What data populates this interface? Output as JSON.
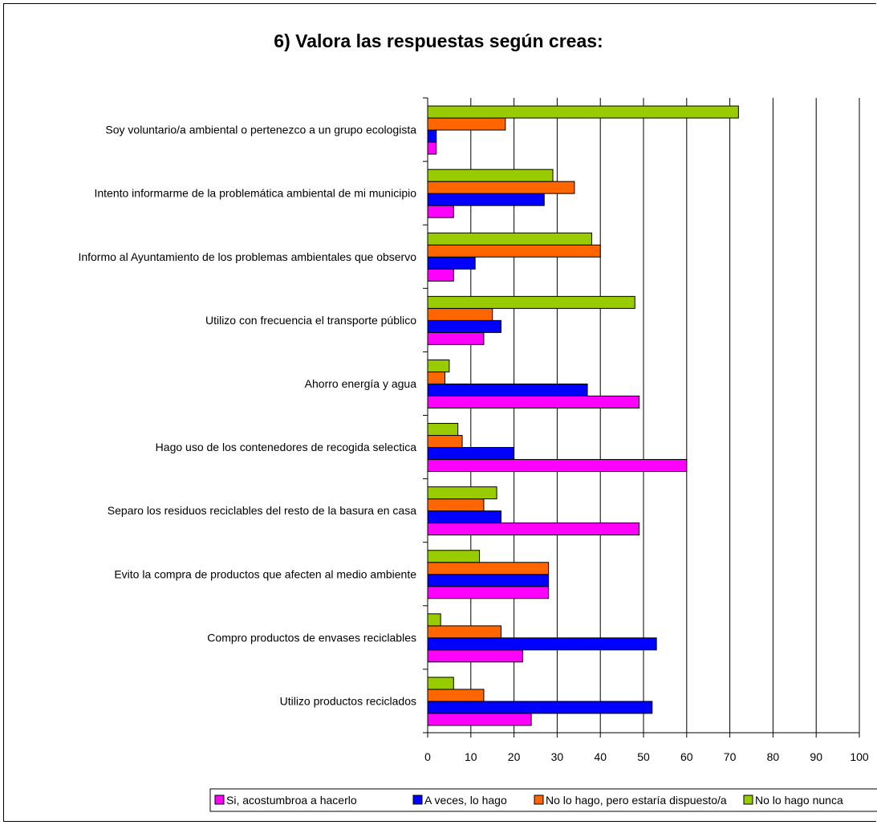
{
  "chart_data": {
    "type": "bar",
    "orientation": "horizontal",
    "title": "6) Valora las respuestas según creas:",
    "xlim": [
      0,
      100
    ],
    "xticks": [
      "0",
      "10",
      "20",
      "30",
      "40",
      "50",
      "60",
      "70",
      "80",
      "90",
      "100"
    ],
    "grid": true,
    "legend_position": "bottom",
    "categories": [
      "Soy voluntario/a ambiental o pertenezco a un grupo ecologista",
      "Intento informarme de la problemática ambiental de mi municipio",
      "Informo al Ayuntamiento de los problemas ambientales que observo",
      "Utilizo con frecuencia el transporte público",
      "Ahorro energía y agua",
      "Hago uso de los contenedores de recogida selectica",
      "Separo los residuos reciclables del resto de la basura en casa",
      "Evito la compra de productos que afecten al medio ambiente",
      "Compro productos de envases reciclables",
      "Utilizo productos reciclados"
    ],
    "series": [
      {
        "name": "Si, acostumbroa a hacerlo",
        "color": "#ff00ff",
        "values": [
          2,
          6,
          6,
          13,
          49,
          60,
          49,
          28,
          22,
          24
        ]
      },
      {
        "name": "A veces, lo hago",
        "color": "#0000ff",
        "values": [
          2,
          27,
          11,
          17,
          37,
          20,
          17,
          28,
          53,
          52
        ]
      },
      {
        "name": "No lo hago, pero estaría dispuesto/a",
        "color": "#ff6600",
        "values": [
          18,
          34,
          40,
          15,
          4,
          8,
          13,
          28,
          17,
          13
        ]
      },
      {
        "name": "No lo hago nunca",
        "color": "#99cc00",
        "values": [
          72,
          29,
          38,
          48,
          5,
          7,
          16,
          12,
          3,
          6
        ]
      }
    ]
  }
}
